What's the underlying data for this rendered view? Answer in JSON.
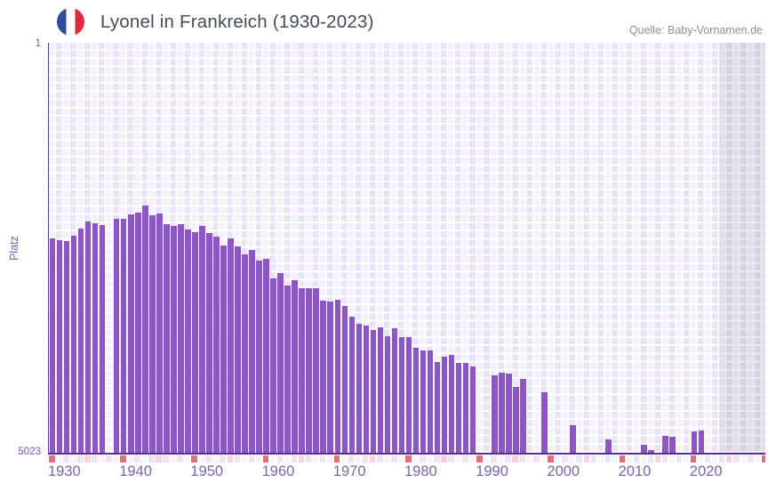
{
  "header": {
    "title": "Lyonel in Frankreich (1930-2023)",
    "icon": "france-flag-icon",
    "source": "Quelle: Baby-Vornamen.de"
  },
  "axes": {
    "y": {
      "label": "Platz",
      "top_tick": "1",
      "bottom_tick": "5023"
    },
    "x": {
      "ticks": [
        "1930",
        "1940",
        "1950",
        "1960",
        "1970",
        "1980",
        "1990",
        "2000",
        "2010",
        "2020"
      ]
    }
  },
  "colors": {
    "bar": "#8c56c5",
    "x_axis_line": "#5b2f92",
    "y_axis_line": "#4d4296",
    "grid_cell_light": "#f5f0fb",
    "grid_cell_dark": "#eae3f6",
    "future_tint": "rgba(95,90,120,0.13)",
    "strip_red": "#e26f7b",
    "strip_pink": "#f3d3de",
    "strip_light": "#f7f4fb",
    "strip_lavender": "#ece5f6",
    "tick_text": "#7e57bd",
    "x_tick_text": "#7b64a9",
    "title_text": "#454b57",
    "source_text": "#8f8f98",
    "flag_blue": "#32499c",
    "flag_red": "#dd2c3b"
  },
  "chart_data": {
    "type": "bar",
    "title": "Lyonel in Frankreich (1930-2023)",
    "xlabel": "",
    "ylabel": "Platz",
    "y_axis": {
      "min": 1,
      "max": 5023,
      "inverted": true,
      "note": "rank 1 at top edge, rank 5023 at baseline; taller bar = better rank; gaps = year not ranked"
    },
    "x_axis": {
      "first_data_year": 1930,
      "last_data_year": 2023,
      "axis_end_year": 2030,
      "tick_years": [
        1930,
        1940,
        1950,
        1960,
        1970,
        1980,
        1990,
        2000,
        2010,
        2020
      ]
    },
    "future_region": {
      "start_year": 2024,
      "end_year": 2030,
      "style": "gray shaded, no data"
    },
    "bottom_strip": {
      "decade_marker": "red cell every year ending in 0",
      "mid_decade_marker": "pink cell every year ending in 5"
    },
    "grid": true,
    "legend": null,
    "points": [
      [
        1930,
        2392
      ],
      [
        1931,
        2424
      ],
      [
        1932,
        2435
      ],
      [
        1933,
        2360
      ],
      [
        1934,
        2272
      ],
      [
        1935,
        2185
      ],
      [
        1936,
        2207
      ],
      [
        1937,
        2229
      ],
      [
        1938,
        null
      ],
      [
        1939,
        2153
      ],
      [
        1940,
        2153
      ],
      [
        1941,
        2098
      ],
      [
        1942,
        2077
      ],
      [
        1943,
        1990
      ],
      [
        1944,
        2109
      ],
      [
        1945,
        2087
      ],
      [
        1946,
        2218
      ],
      [
        1947,
        2250
      ],
      [
        1948,
        2218
      ],
      [
        1949,
        2283
      ],
      [
        1950,
        2316
      ],
      [
        1951,
        2240
      ],
      [
        1952,
        2327
      ],
      [
        1953,
        2370
      ],
      [
        1954,
        2479
      ],
      [
        1955,
        2392
      ],
      [
        1956,
        2490
      ],
      [
        1957,
        2588
      ],
      [
        1958,
        2534
      ],
      [
        1959,
        2664
      ],
      [
        1960,
        2653
      ],
      [
        1961,
        2892
      ],
      [
        1962,
        2827
      ],
      [
        1963,
        2979
      ],
      [
        1964,
        2914
      ],
      [
        1965,
        3012
      ],
      [
        1966,
        3012
      ],
      [
        1967,
        3012
      ],
      [
        1968,
        3164
      ],
      [
        1969,
        3175
      ],
      [
        1970,
        3153
      ],
      [
        1971,
        3229
      ],
      [
        1972,
        3360
      ],
      [
        1973,
        3446
      ],
      [
        1974,
        3468
      ],
      [
        1975,
        3523
      ],
      [
        1976,
        3490
      ],
      [
        1977,
        3599
      ],
      [
        1978,
        3501
      ],
      [
        1979,
        3610
      ],
      [
        1980,
        3610
      ],
      [
        1981,
        3740
      ],
      [
        1982,
        3773
      ],
      [
        1983,
        3773
      ],
      [
        1984,
        3914
      ],
      [
        1985,
        3849
      ],
      [
        1986,
        3827
      ],
      [
        1987,
        3925
      ],
      [
        1988,
        3925
      ],
      [
        1989,
        3968
      ],
      [
        1990,
        null
      ],
      [
        1991,
        null
      ],
      [
        1992,
        4077
      ],
      [
        1993,
        4044
      ],
      [
        1994,
        4055
      ],
      [
        1995,
        4218
      ],
      [
        1996,
        4120
      ],
      [
        1997,
        null
      ],
      [
        1998,
        null
      ],
      [
        1999,
        4283
      ],
      [
        2000,
        null
      ],
      [
        2001,
        null
      ],
      [
        2002,
        null
      ],
      [
        2003,
        4690
      ],
      [
        2004,
        null
      ],
      [
        2005,
        null
      ],
      [
        2006,
        null
      ],
      [
        2007,
        null
      ],
      [
        2008,
        4855
      ],
      [
        2009,
        null
      ],
      [
        2010,
        null
      ],
      [
        2011,
        null
      ],
      [
        2012,
        null
      ],
      [
        2013,
        4925
      ],
      [
        2014,
        4990
      ],
      [
        2015,
        null
      ],
      [
        2016,
        4816
      ],
      [
        2017,
        4827
      ],
      [
        2018,
        null
      ],
      [
        2019,
        null
      ],
      [
        2020,
        4762
      ],
      [
        2021,
        4751
      ],
      [
        2022,
        null
      ],
      [
        2023,
        null
      ]
    ]
  }
}
